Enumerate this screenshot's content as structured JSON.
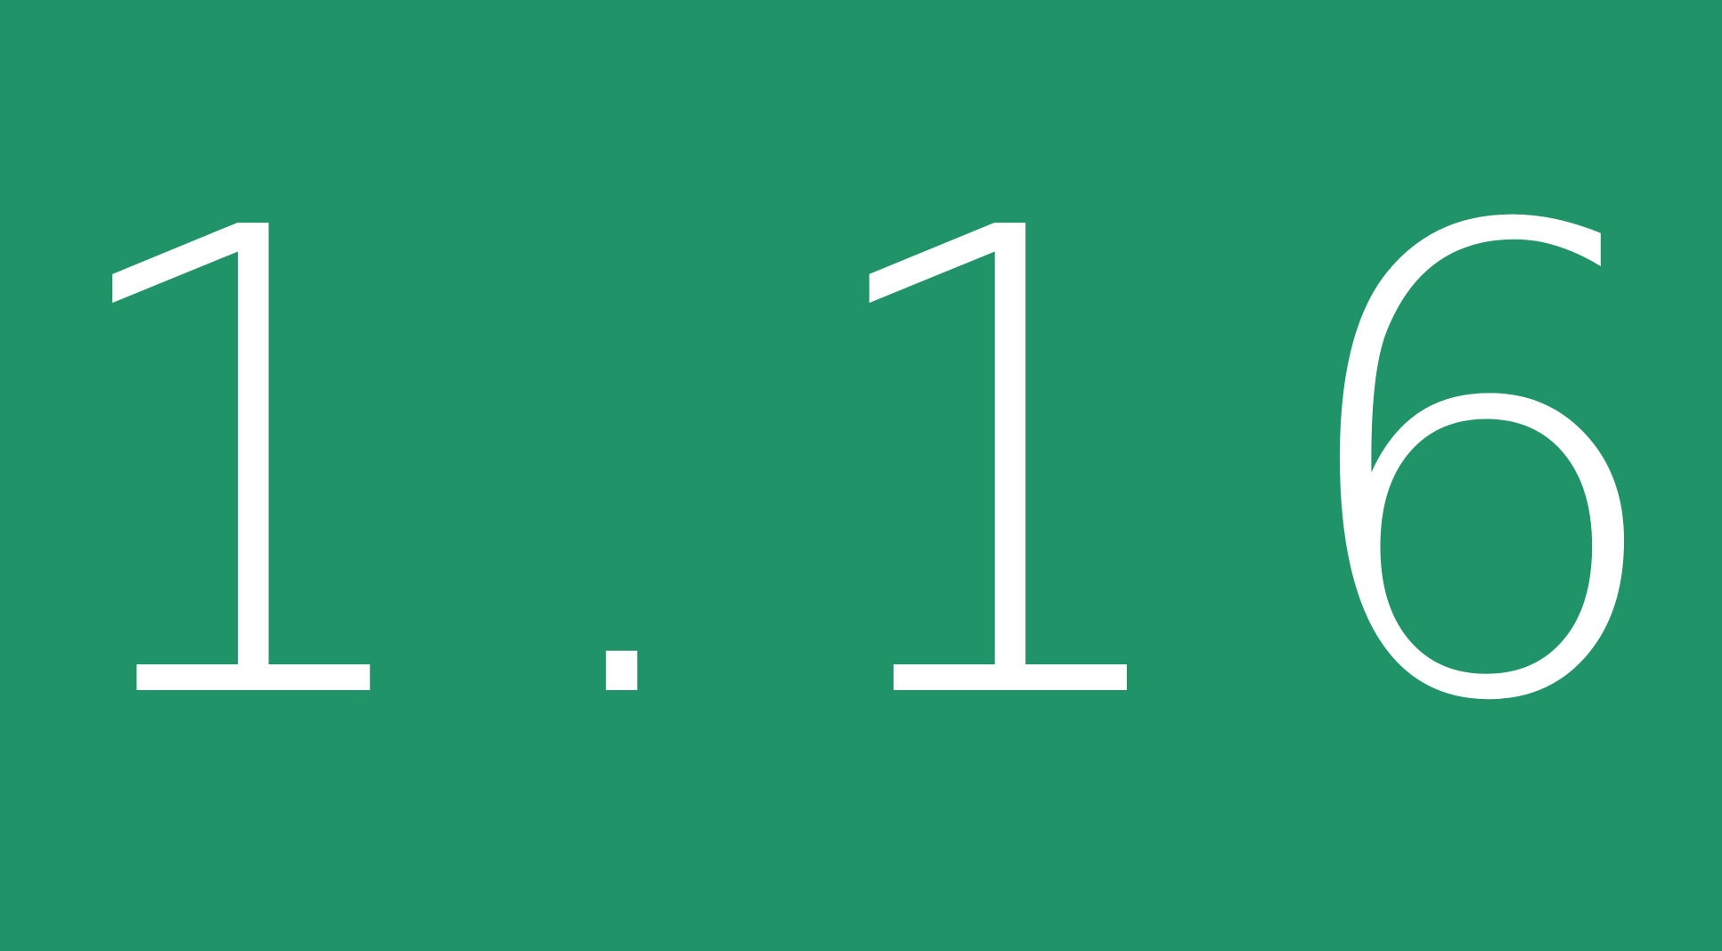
{
  "version_banner": {
    "text": "1.16",
    "background_color": "#209468",
    "text_color": "#ffffff"
  }
}
